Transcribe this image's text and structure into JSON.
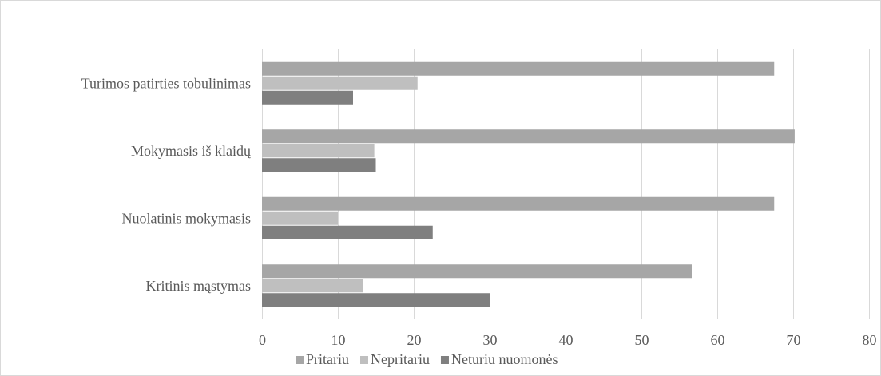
{
  "chart_data": {
    "type": "bar",
    "orientation": "horizontal",
    "title": "",
    "xlabel": "",
    "ylabel": "",
    "categories": [
      "Turimos patirties tobulinimas",
      "Mokymasis iš klaidų",
      "Nuolatinis mokymasis",
      "Kritinis mąstymas"
    ],
    "series": [
      {
        "name": "Pritariu",
        "values": [
          67.5,
          70.2,
          67.5,
          56.7
        ],
        "color": "#a6a6a6"
      },
      {
        "name": "Nepritariu",
        "values": [
          20.5,
          14.8,
          10.0,
          13.3
        ],
        "color": "#bfbfbf"
      },
      {
        "name": "Neturiu nuomonės",
        "values": [
          12.0,
          15.0,
          22.5,
          30.0
        ],
        "color": "#7f7f7f"
      }
    ],
    "xlim": [
      0,
      80
    ],
    "x_ticks": [
      "0",
      "10",
      "20",
      "30",
      "40",
      "50",
      "60",
      "70",
      "80"
    ],
    "grid": true,
    "legend_position": "bottom"
  }
}
